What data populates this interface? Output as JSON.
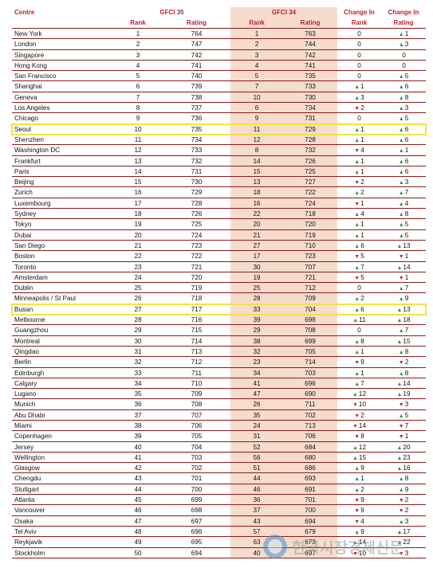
{
  "header": {
    "centre": "Centre",
    "gfci35": "GFCI 35",
    "gfci34": "GFCI 34",
    "change_in_1": "Change In",
    "change_in_2": "Change In",
    "rank": "Rank",
    "rating": "Rating",
    "rank34": "Rank",
    "rating34": "Rating",
    "change_rank": "Rank",
    "change_rating": "Rating"
  },
  "highlighted_centres": [
    "Seoul",
    "Busan"
  ],
  "rows": [
    [
      "New York",
      "1",
      "764",
      "1",
      "763",
      "0",
      "▲",
      "1"
    ],
    [
      "London",
      "2",
      "747",
      "2",
      "744",
      "0",
      "▲",
      "3"
    ],
    [
      "Singapore",
      "3",
      "742",
      "3",
      "742",
      "0",
      "",
      "0"
    ],
    [
      "Hong Kong",
      "4",
      "741",
      "4",
      "741",
      "0",
      "",
      "0"
    ],
    [
      "San Francisco",
      "5",
      "740",
      "5",
      "735",
      "0",
      "▲",
      "5"
    ],
    [
      "Shanghai",
      "6",
      "739",
      "7",
      "733",
      "▲1",
      "▲",
      "6"
    ],
    [
      "Geneva",
      "7",
      "738",
      "10",
      "730",
      "▲3",
      "▲",
      "8"
    ],
    [
      "Los Angeles",
      "8",
      "737",
      "6",
      "734",
      "▼2",
      "▲",
      "3"
    ],
    [
      "Chicago",
      "9",
      "736",
      "9",
      "731",
      "0",
      "▲",
      "5"
    ],
    [
      "Seoul",
      "10",
      "735",
      "11",
      "729",
      "▲1",
      "▲",
      "6"
    ],
    [
      "Shenzhen",
      "11",
      "734",
      "12",
      "728",
      "▲1",
      "▲",
      "6"
    ],
    [
      "Washington DC",
      "12",
      "733",
      "8",
      "732",
      "▼4",
      "▲",
      "1"
    ],
    [
      "Frankfurt",
      "13",
      "732",
      "14",
      "726",
      "▲1",
      "▲",
      "6"
    ],
    [
      "Paris",
      "14",
      "731",
      "15",
      "725",
      "▲1",
      "▲",
      "6"
    ],
    [
      "Beijing",
      "15",
      "730",
      "13",
      "727",
      "▼2",
      "▲",
      "3"
    ],
    [
      "Zurich",
      "16",
      "729",
      "18",
      "722",
      "▲2",
      "▲",
      "7"
    ],
    [
      "Luxembourg",
      "17",
      "728",
      "16",
      "724",
      "▼1",
      "▲",
      "4"
    ],
    [
      "Sydney",
      "18",
      "726",
      "22",
      "718",
      "▲4",
      "▲",
      "8"
    ],
    [
      "Tokyo",
      "19",
      "725",
      "20",
      "720",
      "▲1",
      "▲",
      "5"
    ],
    [
      "Dubai",
      "20",
      "724",
      "21",
      "719",
      "▲1",
      "▲",
      "5"
    ],
    [
      "San Diego",
      "21",
      "723",
      "27",
      "710",
      "▲6",
      "▲",
      "13"
    ],
    [
      "Boston",
      "22",
      "722",
      "17",
      "723",
      "▼5",
      "▼",
      "1"
    ],
    [
      "Toronto",
      "23",
      "721",
      "30",
      "707",
      "▲7",
      "▲",
      "14"
    ],
    [
      "Amsterdam",
      "24",
      "720",
      "19",
      "721",
      "▼5",
      "▼",
      "1"
    ],
    [
      "Dublin",
      "25",
      "719",
      "25",
      "712",
      "0",
      "▲",
      "7"
    ],
    [
      "Minneapolis / St Paul",
      "26",
      "718",
      "28",
      "709",
      "▲2",
      "▲",
      "9"
    ],
    [
      "Busan",
      "27",
      "717",
      "33",
      "704",
      "▲6",
      "▲",
      "13"
    ],
    [
      "Melbourne",
      "28",
      "716",
      "39",
      "698",
      "▲11",
      "▲",
      "18"
    ],
    [
      "Guangzhou",
      "29",
      "715",
      "29",
      "708",
      "0",
      "▲",
      "7"
    ],
    [
      "Montreal",
      "30",
      "714",
      "38",
      "699",
      "▲8",
      "▲",
      "15"
    ],
    [
      "Qingdao",
      "31",
      "713",
      "32",
      "705",
      "▲1",
      "▲",
      "8"
    ],
    [
      "Berlin",
      "32",
      "712",
      "23",
      "714",
      "▼9",
      "▼",
      "2"
    ],
    [
      "Edinburgh",
      "33",
      "711",
      "34",
      "703",
      "▲1",
      "▲",
      "8"
    ],
    [
      "Calgary",
      "34",
      "710",
      "41",
      "696",
      "▲7",
      "▲",
      "14"
    ],
    [
      "Lugano",
      "35",
      "709",
      "47",
      "690",
      "▲12",
      "▲",
      "19"
    ],
    [
      "Munich",
      "36",
      "708",
      "26",
      "711",
      "▼10",
      "▼",
      "3"
    ],
    [
      "Abu Dhabi",
      "37",
      "707",
      "35",
      "702",
      "▼2",
      "▲",
      "5"
    ],
    [
      "Miami",
      "38",
      "706",
      "24",
      "713",
      "▼14",
      "▼",
      "7"
    ],
    [
      "Copenhagen",
      "39",
      "705",
      "31",
      "706",
      "▼8",
      "▼",
      "1"
    ],
    [
      "Jersey",
      "40",
      "704",
      "52",
      "684",
      "▲12",
      "▲",
      "20"
    ],
    [
      "Wellington",
      "41",
      "703",
      "56",
      "680",
      "▲15",
      "▲",
      "23"
    ],
    [
      "Glasgow",
      "42",
      "702",
      "51",
      "686",
      "▲9",
      "▲",
      "16"
    ],
    [
      "Chengdu",
      "43",
      "701",
      "44",
      "693",
      "▲1",
      "▲",
      "8"
    ],
    [
      "Stuttgart",
      "44",
      "700",
      "46",
      "691",
      "▲2",
      "▲",
      "9"
    ],
    [
      "Atlanta",
      "45",
      "699",
      "36",
      "701",
      "▼9",
      "▼",
      "2"
    ],
    [
      "Vancouver",
      "46",
      "698",
      "37",
      "700",
      "▼9",
      "▼",
      "2"
    ],
    [
      "Osaka",
      "47",
      "697",
      "43",
      "694",
      "▼4",
      "▲",
      "3"
    ],
    [
      "Tel Aviv",
      "48",
      "696",
      "57",
      "679",
      "▲9",
      "▲",
      "17"
    ],
    [
      "Reykjavik",
      "49",
      "695",
      "63",
      "673",
      "▲14",
      "▲",
      "22"
    ],
    [
      "Stockholm",
      "50",
      "694",
      "40",
      "697",
      "▼10",
      "▼",
      "3"
    ]
  ],
  "watermark": {
    "text": "한국시장경제신문",
    "icon": "logo-circle-icon"
  },
  "colors": {
    "header_text": "#c0202e",
    "row_rule": "#8b1a1a",
    "gfci34_shade": "#f6dccd",
    "up": "#1e9e45",
    "down": "#d0202e",
    "highlight": "#f1e24a"
  }
}
